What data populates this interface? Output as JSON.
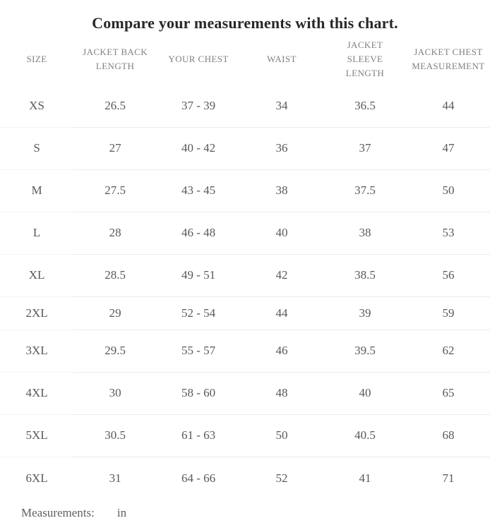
{
  "title": "Compare your measurements with this chart.",
  "chart_data": {
    "type": "table",
    "columns": [
      {
        "label": "SIZE",
        "lines": [
          "SIZE"
        ]
      },
      {
        "label": "JACKET BACK LENGTH",
        "lines": [
          "JACKET BACK",
          "LENGTH"
        ]
      },
      {
        "label": "YOUR CHEST",
        "lines": [
          "YOUR CHEST"
        ]
      },
      {
        "label": "WAIST",
        "lines": [
          "WAIST"
        ]
      },
      {
        "label": "JACKET SLEEVE LENGTH",
        "lines": [
          "JACKET",
          "SLEEVE",
          "LENGTH"
        ]
      },
      {
        "label": "JACKET CHEST MEASUREMENT",
        "lines": [
          "JACKET CHEST",
          "MEASUREMENT"
        ]
      }
    ],
    "rows": [
      [
        "XS",
        "26.5",
        "37 - 39",
        "34",
        "36.5",
        "44"
      ],
      [
        "S",
        "27",
        "40 - 42",
        "36",
        "37",
        "47"
      ],
      [
        "M",
        "27.5",
        "43 - 45",
        "38",
        "37.5",
        "50"
      ],
      [
        "L",
        "28",
        "46 - 48",
        "40",
        "38",
        "53"
      ],
      [
        "XL",
        "28.5",
        "49 - 51",
        "42",
        "38.5",
        "56"
      ],
      [
        "2XL",
        "29",
        "52 - 54",
        "44",
        "39",
        "59"
      ],
      [
        "3XL",
        "29.5",
        "55 - 57",
        "46",
        "39.5",
        "62"
      ],
      [
        "4XL",
        "30",
        "58 - 60",
        "48",
        "40",
        "65"
      ],
      [
        "5XL",
        "30.5",
        "61 - 63",
        "50",
        "40.5",
        "68"
      ],
      [
        "6XL",
        "31",
        "64 - 66",
        "52",
        "41",
        "71"
      ]
    ],
    "compact_row_index": 5
  },
  "footer": {
    "measurements_label": "Measurements:",
    "unit_value": "in"
  },
  "colors": {
    "background": "#ffffff",
    "title_text": "#26282a",
    "header_text": "#7e8184",
    "body_text": "#56595d",
    "footer_text": "#5d6063",
    "divider": "#ececec",
    "divider_first_column": "#f5f5f5"
  }
}
